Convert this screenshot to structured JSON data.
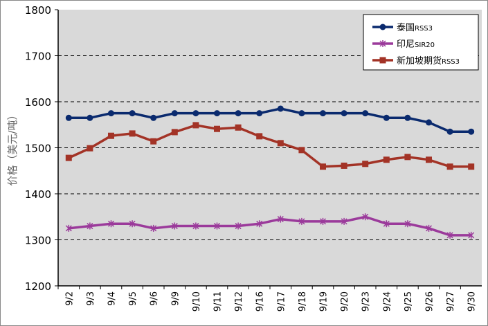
{
  "chart_data": {
    "type": "line",
    "title": "",
    "xlabel": "",
    "ylabel": "价格（美元/吨）",
    "ylim": [
      1200,
      1800
    ],
    "yticks": [
      1200,
      1300,
      1400,
      1500,
      1600,
      1700,
      1800
    ],
    "grid": "horizontal dashed",
    "legend_position": "top-right",
    "categories": [
      "9/2",
      "9/3",
      "9/4",
      "9/5",
      "9/6",
      "9/9",
      "9/10",
      "9/11",
      "9/12",
      "9/16",
      "9/17",
      "9/18",
      "9/19",
      "9/20",
      "9/23",
      "9/24",
      "9/25",
      "9/26",
      "9/27",
      "9/30"
    ],
    "series": [
      {
        "name": "泰国RSS3",
        "color": "#0a2a6e",
        "marker": "circle",
        "values": [
          1565,
          1565,
          1575,
          1575,
          1565,
          1575,
          1575,
          1575,
          1575,
          1575,
          1585,
          1575,
          1575,
          1575,
          1575,
          1565,
          1565,
          1555,
          1535,
          1535
        ]
      },
      {
        "name": "印尼SIR20",
        "color": "#9b3a9b",
        "marker": "star",
        "values": [
          1325,
          1330,
          1335,
          1335,
          1325,
          1330,
          1330,
          1330,
          1330,
          1335,
          1345,
          1340,
          1340,
          1340,
          1350,
          1335,
          1335,
          1325,
          1310,
          1310
        ]
      },
      {
        "name": "新加坡期货RSS3",
        "color": "#a33326",
        "marker": "square",
        "values": [
          1478,
          1499,
          1526,
          1531,
          1514,
          1534,
          1549,
          1541,
          1544,
          1525,
          1510,
          1495,
          1459,
          1461,
          1465,
          1474,
          1480,
          1474,
          1459,
          1459
        ]
      }
    ]
  }
}
